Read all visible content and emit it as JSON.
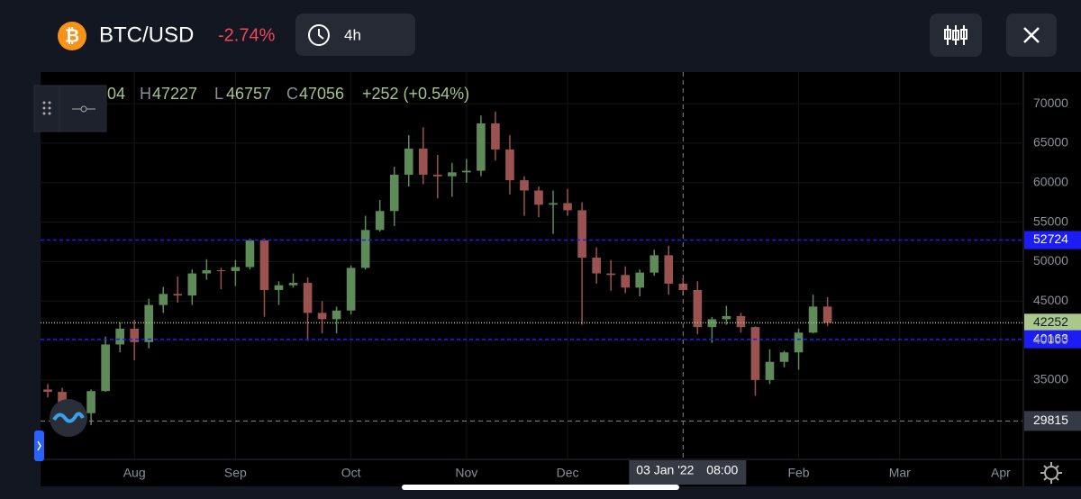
{
  "header": {
    "symbol": "BTC/USD",
    "change": "-2.74%",
    "interval": "4h"
  },
  "chart_data": {
    "type": "candlestick",
    "categories": [
      null,
      null,
      null,
      null,
      null,
      null,
      "Aug",
      null,
      null,
      null,
      null,
      null,
      null,
      "Sep",
      null,
      null,
      null,
      null,
      null,
      null,
      null,
      "Oct",
      null,
      null,
      null,
      null,
      null,
      null,
      null,
      "Nov",
      null,
      null,
      null,
      null,
      null,
      null,
      "Dec",
      null,
      null,
      null,
      null,
      null,
      null,
      null,
      null,
      null,
      null,
      null,
      null,
      null,
      null,
      null,
      "Feb",
      null,
      null,
      null,
      null,
      null,
      null,
      "Mar",
      null,
      null,
      null,
      null,
      null,
      null,
      "Apr",
      null
    ],
    "open": [
      33800,
      33500,
      32100,
      30800,
      33600,
      39500,
      41500,
      39800,
      44500,
      45900,
      45700,
      48500,
      48900,
      48800,
      49300,
      52700,
      46400,
      47000,
      47300,
      43500,
      42700,
      43800,
      49200,
      54000,
      56400,
      61000,
      64300,
      61000,
      60800,
      61300,
      61500,
      67500,
      64200,
      60300,
      59000,
      57200,
      57400,
      56500,
      50500,
      48500,
      48300,
      46700,
      48600,
      50800,
      47200,
      46400,
      41700,
      42700,
      43100,
      41700,
      35000,
      37300,
      38500,
      41000,
      44300,
      null,
      null,
      null,
      null,
      null,
      null,
      null,
      null,
      null,
      null,
      null,
      null,
      null
    ],
    "high": [
      34500,
      34000,
      32300,
      33800,
      40500,
      42300,
      42600,
      45300,
      46800,
      48100,
      49000,
      50300,
      49200,
      50200,
      52900,
      52900,
      47500,
      48500,
      48000,
      45000,
      44300,
      49500,
      55800,
      57800,
      62000,
      66000,
      67000,
      63500,
      62500,
      63000,
      68500,
      69000,
      66000,
      60800,
      59500,
      59000,
      59200,
      57500,
      51800,
      50200,
      49400,
      49000,
      51500,
      52000,
      47900,
      47500,
      43000,
      44400,
      43500,
      41800,
      38900,
      38700,
      41500,
      45800,
      45500,
      null,
      null,
      null,
      null,
      null,
      null,
      null,
      null,
      null,
      null,
      null,
      null,
      null
    ],
    "low": [
      32800,
      31800,
      29500,
      29300,
      33500,
      38500,
      37500,
      39000,
      43500,
      44800,
      44500,
      47700,
      46500,
      46900,
      49000,
      43000,
      44500,
      46700,
      40000,
      40900,
      40900,
      43300,
      49000,
      53800,
      54500,
      59500,
      59800,
      58000,
      58200,
      60000,
      60800,
      62800,
      58500,
      55800,
      55600,
      53500,
      55800,
      42000,
      47200,
      46300,
      46000,
      45600,
      48200,
      45800,
      45700,
      40800,
      39700,
      42000,
      41000,
      33000,
      34500,
      36600,
      36300,
      40900,
      41800,
      null,
      null,
      null,
      null,
      null,
      null,
      null,
      null,
      null,
      null,
      null,
      null,
      null
    ],
    "close": [
      33500,
      32100,
      30800,
      33600,
      39500,
      41500,
      39800,
      44500,
      45900,
      45700,
      48500,
      48900,
      48800,
      49300,
      52700,
      46400,
      47000,
      47300,
      43500,
      42700,
      43800,
      49200,
      54000,
      56400,
      61000,
      64300,
      61000,
      60800,
      61300,
      61500,
      67500,
      64200,
      60300,
      59000,
      57200,
      57400,
      56500,
      50500,
      48500,
      48300,
      46700,
      48600,
      50800,
      47200,
      46400,
      41700,
      42700,
      43100,
      41700,
      35000,
      37300,
      38500,
      41000,
      44300,
      42250,
      null,
      null,
      null,
      null,
      null,
      null,
      null,
      null,
      null,
      null,
      null,
      null,
      null
    ],
    "up_color": "#5f8a5a",
    "down_color": "#9a5350",
    "ylim": [
      24950,
      74000
    ],
    "yticks": [
      35000,
      40000,
      45000,
      50000,
      55000,
      60000,
      65000,
      70000
    ],
    "grid": true,
    "readout": {
      "open": "04",
      "high_label": "H",
      "high": 47227,
      "low_label": "L",
      "low": 46757,
      "close_label": "C",
      "close": 47056,
      "change": "+252 (+0.54%)"
    },
    "price_lines": [
      {
        "value": 52724,
        "color": "#1c1cf5",
        "text_color": "#ffffff",
        "dash": "4 3"
      },
      {
        "value": 42252,
        "color": "#a8c88c",
        "text_color": "#131722",
        "dash": "1 2"
      },
      {
        "value": 40163,
        "color": "#1c1cf5",
        "text_color": "#ffffff",
        "dash": "4 3"
      }
    ],
    "crosshair": {
      "date": "03 Jan '22",
      "time": "08:00",
      "price": 29815
    }
  }
}
